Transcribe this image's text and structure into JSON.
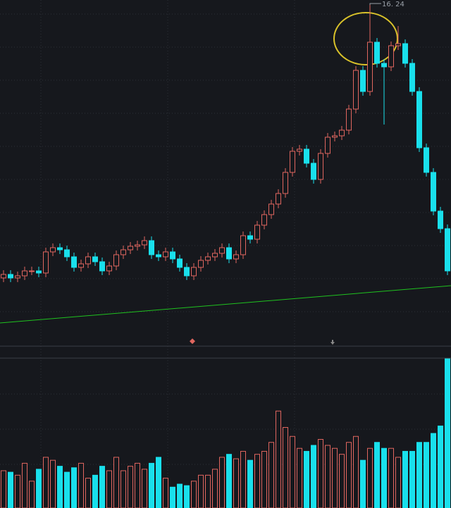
{
  "chart_data": {
    "type": "candlestick",
    "annotation": "16. 24",
    "up_color": "#e0665f",
    "down_color": "#19e0ec",
    "ylim": [
      6.54,
      16.34
    ],
    "open": [
      8.44,
      8.54,
      8.44,
      8.5,
      8.64,
      8.64,
      8.58,
      9.18,
      9.3,
      9.24,
      9.04,
      8.74,
      8.84,
      9.04,
      8.9,
      8.64,
      8.78,
      9.1,
      9.24,
      9.34,
      9.38,
      9.5,
      9.1,
      9.04,
      9.18,
      8.98,
      8.74,
      8.5,
      8.74,
      8.94,
      9.04,
      9.14,
      9.3,
      8.98,
      9.1,
      9.64,
      9.54,
      9.94,
      10.24,
      10.54,
      10.84,
      11.44,
      12.04,
      12.1,
      11.7,
      11.24,
      11.98,
      12.44,
      12.48,
      12.64,
      13.24,
      14.34,
      13.74,
      15.14,
      14.54,
      14.44,
      15.04,
      15.1,
      14.54,
      13.74,
      12.14,
      11.44,
      10.34,
      9.84
    ],
    "high": [
      8.66,
      8.66,
      8.62,
      8.76,
      8.76,
      8.76,
      9.3,
      9.42,
      9.42,
      9.36,
      9.16,
      8.96,
      9.16,
      9.16,
      9.02,
      8.9,
      9.22,
      9.36,
      9.46,
      9.5,
      9.62,
      9.62,
      9.22,
      9.3,
      9.3,
      9.1,
      8.86,
      8.86,
      9.06,
      9.16,
      9.26,
      9.42,
      9.42,
      9.22,
      9.76,
      9.76,
      10.06,
      10.36,
      10.66,
      10.96,
      11.56,
      12.16,
      12.22,
      12.22,
      11.82,
      12.1,
      12.56,
      12.6,
      12.76,
      13.36,
      14.46,
      14.46,
      16.24,
      15.26,
      14.66,
      15.16,
      15.6,
      15.22,
      14.66,
      13.86,
      12.26,
      11.56,
      10.46,
      9.96
    ],
    "low": [
      8.32,
      8.32,
      8.32,
      8.38,
      8.52,
      8.46,
      8.46,
      9.06,
      9.12,
      8.92,
      8.62,
      8.62,
      8.72,
      8.78,
      8.52,
      8.52,
      8.66,
      8.98,
      9.12,
      9.22,
      9.26,
      8.98,
      8.92,
      8.92,
      8.86,
      8.62,
      8.38,
      8.38,
      8.62,
      8.82,
      8.92,
      9.02,
      8.86,
      8.86,
      8.98,
      9.42,
      9.42,
      9.82,
      10.12,
      10.42,
      10.72,
      11.32,
      11.92,
      11.58,
      11.12,
      11.12,
      11.86,
      12.32,
      12.36,
      12.52,
      13.12,
      13.62,
      13.62,
      14.42,
      12.8,
      14.32,
      14.92,
      14.42,
      13.62,
      12.02,
      11.32,
      10.22,
      9.72,
      8.52
    ],
    "close": [
      8.54,
      8.44,
      8.5,
      8.64,
      8.64,
      8.58,
      9.18,
      9.3,
      9.24,
      9.04,
      8.74,
      8.84,
      9.04,
      8.9,
      8.64,
      8.78,
      9.1,
      9.24,
      9.34,
      9.38,
      9.5,
      9.1,
      9.04,
      9.18,
      8.98,
      8.74,
      8.5,
      8.74,
      8.94,
      9.04,
      9.14,
      9.3,
      8.98,
      9.1,
      9.64,
      9.54,
      9.94,
      10.24,
      10.54,
      10.84,
      11.44,
      12.04,
      12.1,
      11.7,
      11.24,
      11.98,
      12.44,
      12.48,
      12.64,
      13.24,
      14.34,
      13.74,
      15.14,
      14.54,
      14.44,
      15.04,
      15.1,
      14.54,
      13.74,
      12.14,
      11.44,
      10.34,
      9.84,
      8.64
    ],
    "ma": {
      "color": "#1fc21f",
      "x": [
        0,
        63
      ],
      "values": [
        7.16,
        8.22
      ]
    },
    "volume_ylim": [
      0,
      100
    ],
    "volume": [
      25,
      24,
      22,
      30,
      18,
      26,
      34,
      32,
      28,
      24,
      27,
      30,
      20,
      22,
      28,
      25,
      34,
      25,
      28,
      30,
      26,
      30,
      34,
      20,
      14,
      16,
      15,
      18,
      22,
      22,
      26,
      34,
      36,
      33,
      38,
      32,
      36,
      38,
      44,
      65,
      54,
      48,
      40,
      38,
      42,
      46,
      42,
      40,
      36,
      44,
      48,
      32,
      40,
      44,
      40,
      40,
      34,
      38,
      38,
      44,
      44,
      50,
      55,
      100
    ]
  }
}
